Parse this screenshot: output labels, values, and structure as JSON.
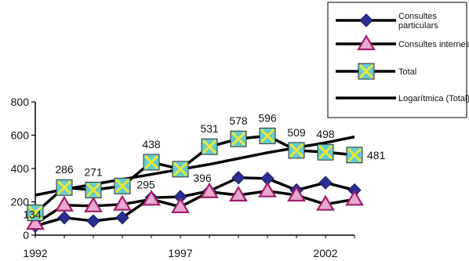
{
  "chart_data": {
    "type": "line",
    "x": [
      1992,
      1993,
      1994,
      1995,
      1996,
      1997,
      1998,
      1999,
      2000,
      2001,
      2002,
      2003
    ],
    "x_ticks": [
      "1992",
      "1997",
      "2002"
    ],
    "xlim": [
      1992,
      2003
    ],
    "ylim": [
      0,
      800
    ],
    "y_ticks": [
      "0",
      "200",
      "400",
      "600",
      "800"
    ],
    "grid": false,
    "legend_position": "top-right",
    "series": [
      {
        "name": "Consultes particulars",
        "marker": "diamond",
        "color": "#2b2f8f",
        "values": [
          55,
          105,
          85,
          105,
          225,
          230,
          265,
          345,
          340,
          270,
          315,
          270
        ]
      },
      {
        "name": "Consultes internes",
        "marker": "triangle",
        "color": "#e8a8d0",
        "values": [
          70,
          180,
          175,
          185,
          215,
          170,
          260,
          240,
          265,
          240,
          185,
          215
        ]
      },
      {
        "name": "Total",
        "marker": "square-x",
        "color": "#66cccc",
        "values": [
          134,
          286,
          271,
          295,
          438,
          396,
          531,
          578,
          596,
          509,
          498,
          481
        ],
        "labels": [
          "134",
          "286",
          "271",
          "295",
          "438",
          "396",
          "531",
          "578",
          "596",
          "509",
          "498",
          "481"
        ]
      },
      {
        "name": "Logarítmica (Total)",
        "marker": "none",
        "color": "#000000",
        "values": [
          240,
          275,
          305,
          335,
          365,
          395,
          425,
          460,
          495,
          525,
          555,
          590
        ]
      }
    ]
  }
}
